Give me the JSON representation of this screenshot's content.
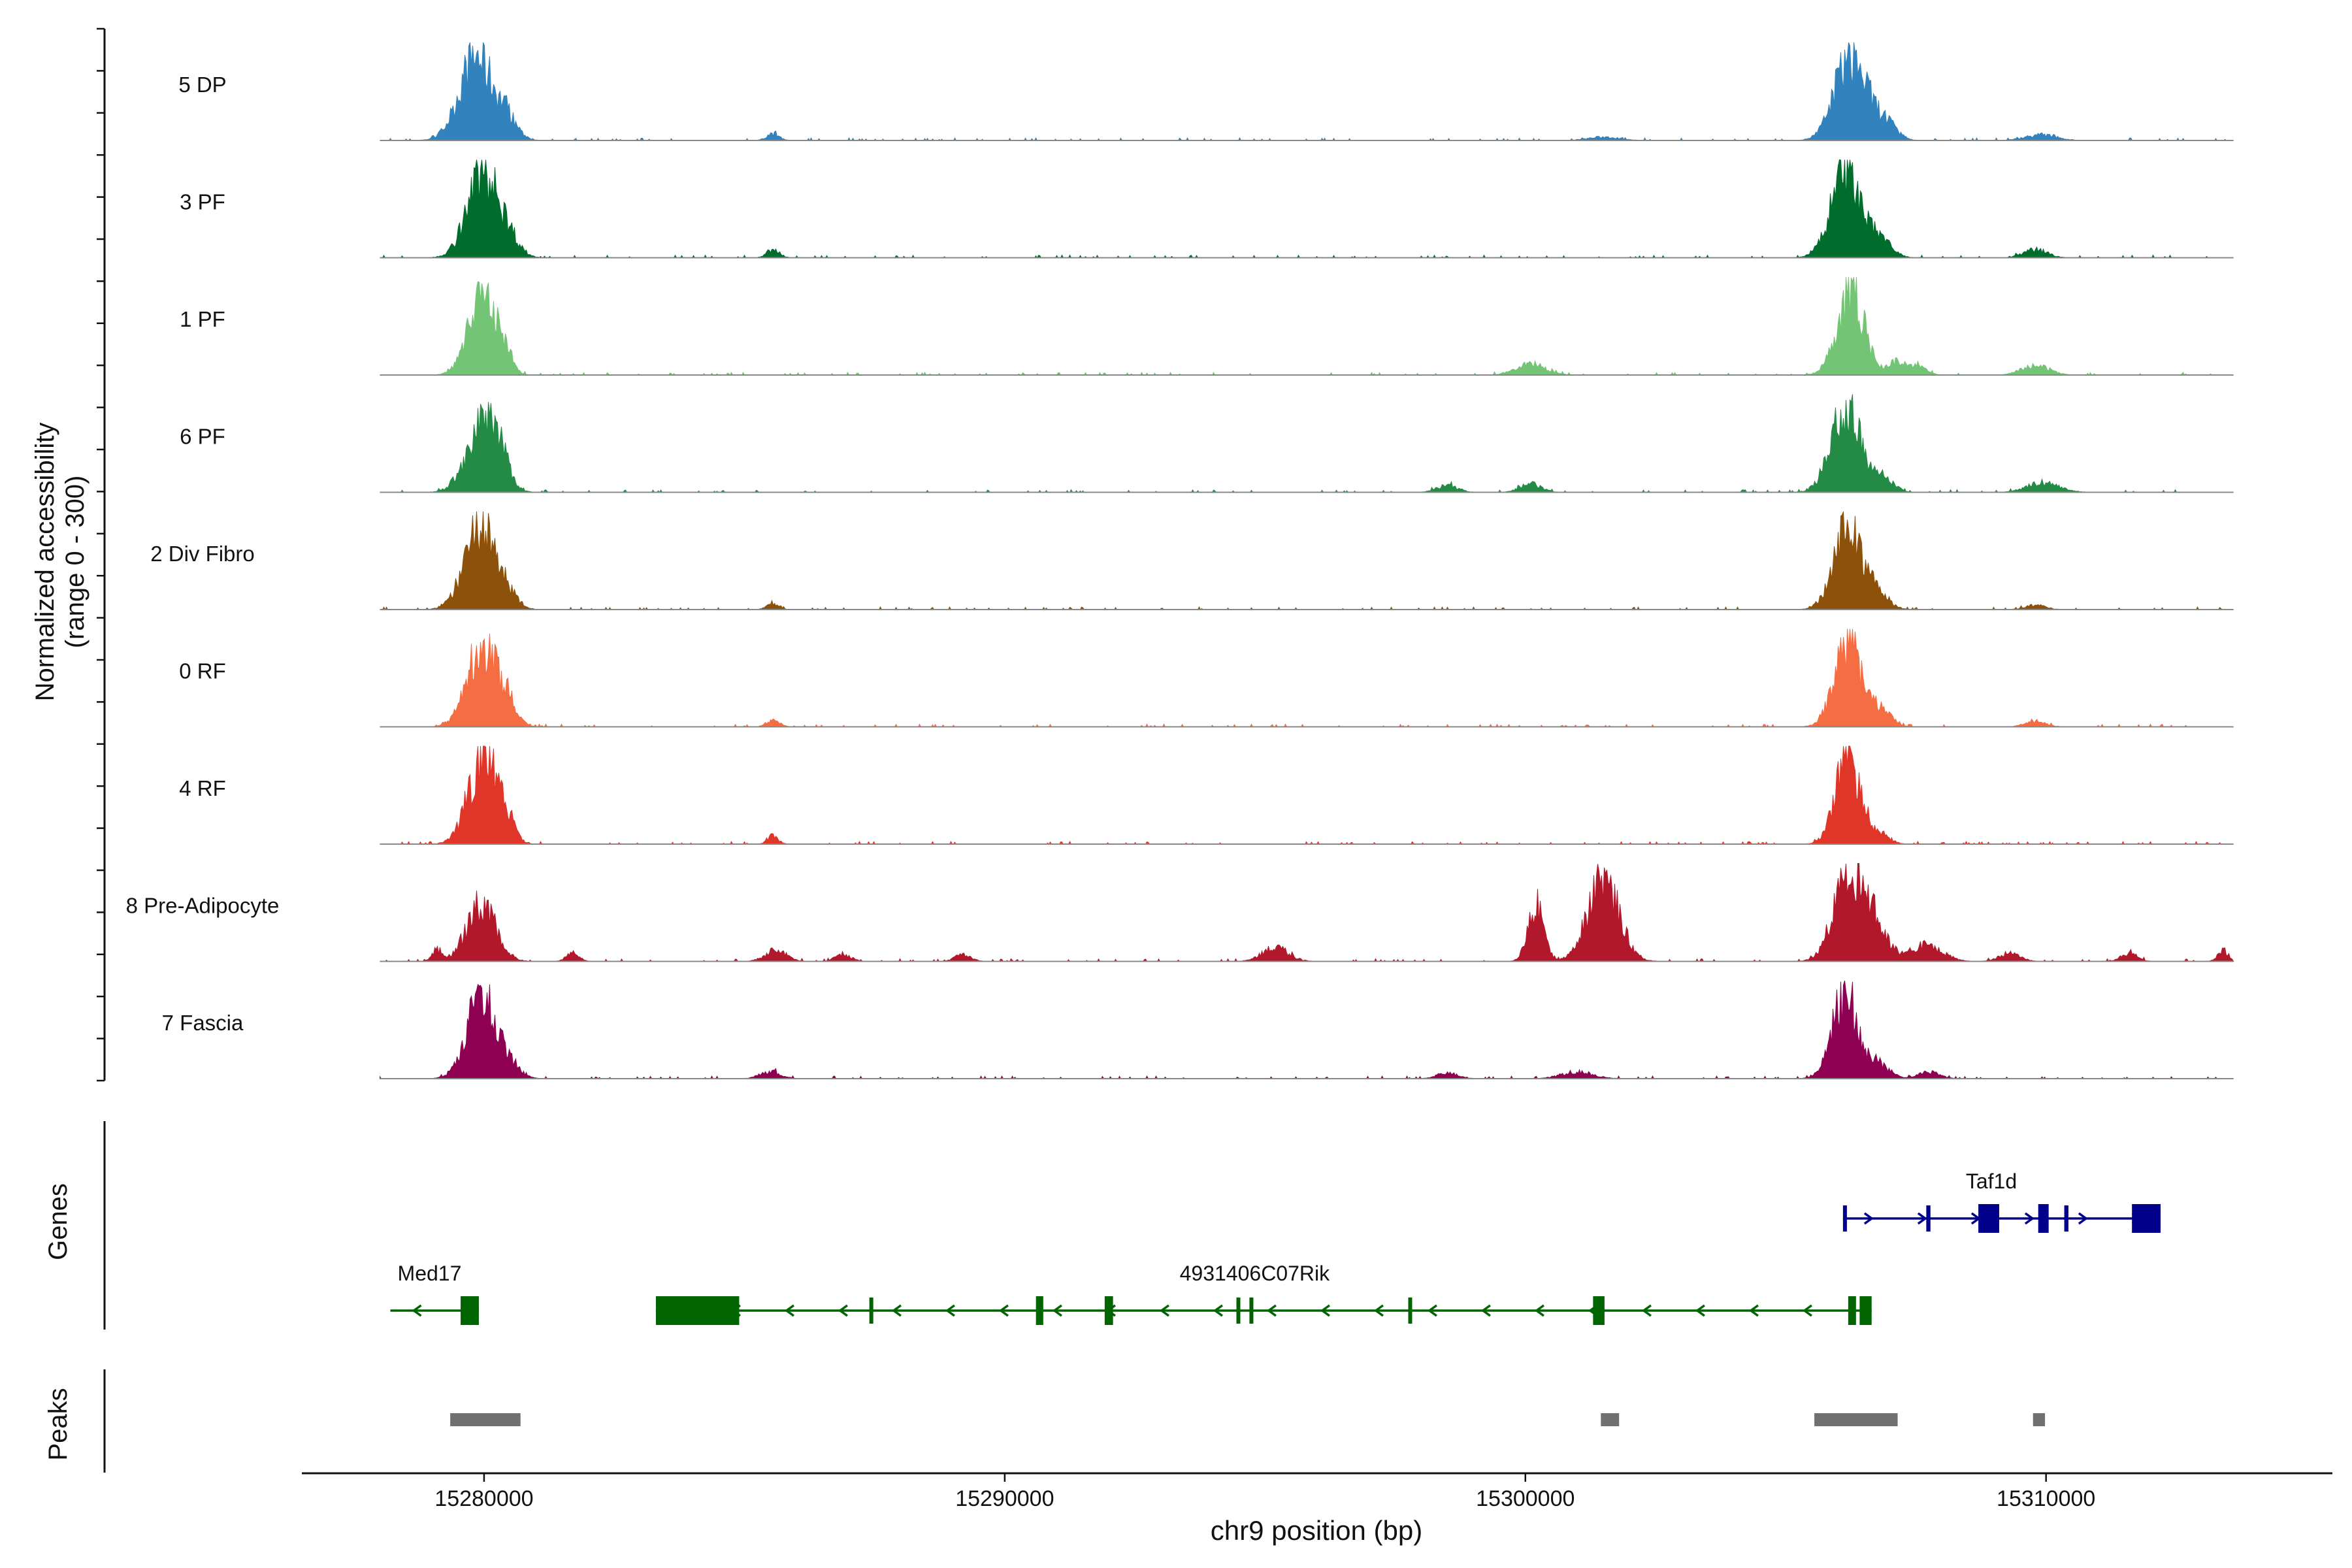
{
  "chart_data": {
    "type": "area",
    "title": "",
    "ylabel_line1": "Normalized accessibility",
    "ylabel_line2": "(range 0 - 300)",
    "xlabel": "chr9 position (bp)",
    "xlim": [
      15276500,
      15315500
    ],
    "ylim": [
      0,
      300
    ],
    "xticks": [
      15280000,
      15290000,
      15300000,
      15310000
    ],
    "xtick_labels": [
      "15280000",
      "15290000",
      "15300000",
      "15310000"
    ],
    "track_range": [
      15278000,
      15313600
    ],
    "series": [
      {
        "name": "5 DP",
        "color": "#3182BD",
        "peaks": [
          [
            15279850,
            300,
            320
          ],
          [
            15280450,
            60,
            200
          ],
          [
            15285550,
            25,
            120
          ],
          [
            15306250,
            300,
            300
          ],
          [
            15306900,
            60,
            220
          ],
          [
            15309900,
            20,
            300
          ],
          [
            15301500,
            12,
            300
          ]
        ]
      },
      {
        "name": "3 PF",
        "color": "#006D2C",
        "peaks": [
          [
            15279980,
            300,
            300
          ],
          [
            15280500,
            50,
            200
          ],
          [
            15285550,
            30,
            120
          ],
          [
            15306150,
            300,
            280
          ],
          [
            15306800,
            70,
            220
          ],
          [
            15309800,
            30,
            220
          ]
        ]
      },
      {
        "name": "1 PF",
        "color": "#74C476",
        "peaks": [
          [
            15279950,
            300,
            260
          ],
          [
            15280380,
            70,
            150
          ],
          [
            15300100,
            40,
            280
          ],
          [
            15306250,
            300,
            260
          ],
          [
            15307150,
            50,
            160
          ],
          [
            15307550,
            35,
            160
          ],
          [
            15309800,
            35,
            260
          ]
        ]
      },
      {
        "name": "6 PF",
        "color": "#238B45",
        "peaks": [
          [
            15279950,
            230,
            300
          ],
          [
            15280300,
            80,
            180
          ],
          [
            15298500,
            25,
            200
          ],
          [
            15300100,
            30,
            200
          ],
          [
            15306150,
            300,
            280
          ],
          [
            15306850,
            60,
            200
          ],
          [
            15309950,
            35,
            300
          ]
        ]
      },
      {
        "name": "2 Div Fibro",
        "color": "#8C510A",
        "peaks": [
          [
            15279920,
            290,
            300
          ],
          [
            15280450,
            40,
            200
          ],
          [
            15285550,
            20,
            120
          ],
          [
            15306200,
            300,
            270
          ],
          [
            15306800,
            50,
            200
          ],
          [
            15309800,
            15,
            200
          ]
        ]
      },
      {
        "name": "0 RF",
        "color": "#F46D43",
        "peaks": [
          [
            15279950,
            300,
            280
          ],
          [
            15280450,
            70,
            180
          ],
          [
            15285550,
            25,
            120
          ],
          [
            15306200,
            300,
            260
          ],
          [
            15306850,
            60,
            180
          ],
          [
            15309800,
            20,
            200
          ]
        ]
      },
      {
        "name": "4 RF",
        "color": "#E03529",
        "peaks": [
          [
            15279980,
            300,
            280
          ],
          [
            15280400,
            70,
            160
          ],
          [
            15285550,
            30,
            100
          ],
          [
            15306200,
            300,
            240
          ],
          [
            15306800,
            40,
            180
          ]
        ]
      },
      {
        "name": "8 Pre-Adipocyte",
        "color": "#B2182B",
        "peaks": [
          [
            15279950,
            200,
            280
          ],
          [
            15279100,
            40,
            100
          ],
          [
            15281700,
            30,
            120
          ],
          [
            15285600,
            40,
            200
          ],
          [
            15286900,
            25,
            150
          ],
          [
            15289200,
            25,
            150
          ],
          [
            15295200,
            50,
            250
          ],
          [
            15300200,
            200,
            150
          ],
          [
            15301500,
            300,
            300
          ],
          [
            15306200,
            300,
            280
          ],
          [
            15306700,
            120,
            250
          ],
          [
            15307700,
            60,
            300
          ],
          [
            15309300,
            30,
            200
          ],
          [
            15311600,
            30,
            150
          ],
          [
            15313400,
            40,
            100
          ]
        ]
      },
      {
        "name": "7 Fascia",
        "color": "#8E0152",
        "peaks": [
          [
            15279950,
            300,
            280
          ],
          [
            15280500,
            40,
            200
          ],
          [
            15285500,
            25,
            200
          ],
          [
            15298500,
            20,
            200
          ],
          [
            15301000,
            25,
            300
          ],
          [
            15306150,
            300,
            250
          ],
          [
            15306800,
            50,
            200
          ],
          [
            15307750,
            25,
            200
          ]
        ]
      }
    ],
    "genes": [
      {
        "name": "Taf1d",
        "strand": "+",
        "color": "#00008B",
        "row": 1,
        "start": 15306100,
        "end": 15312200,
        "exons": [
          [
            15306100,
            15306170,
            "line"
          ],
          [
            15307700,
            15307780,
            "line"
          ],
          [
            15308700,
            15309100,
            "box"
          ],
          [
            15309850,
            15310050,
            "box"
          ],
          [
            15310350,
            15310430,
            "line"
          ],
          [
            15311650,
            15312200,
            "box"
          ]
        ]
      },
      {
        "name": "Med17",
        "strand": "-",
        "color": "#006400",
        "row": 2,
        "start": 15278200,
        "end": 15279900,
        "exons": [
          [
            15279550,
            15279900,
            "box"
          ]
        ]
      },
      {
        "name": "4931406C07Rik",
        "strand": "-",
        "color": "#006400",
        "row": 2,
        "start": 15283300,
        "end": 15306650,
        "exons": [
          [
            15283300,
            15284900,
            "box"
          ],
          [
            15287400,
            15287470,
            "line"
          ],
          [
            15290600,
            15290740,
            "box"
          ],
          [
            15291920,
            15292080,
            "box"
          ],
          [
            15294450,
            15294520,
            "line"
          ],
          [
            15294700,
            15294770,
            "line"
          ],
          [
            15297750,
            15297820,
            "line"
          ],
          [
            15301300,
            15301520,
            "box"
          ],
          [
            15306200,
            15306350,
            "box"
          ],
          [
            15306420,
            15306650,
            "box"
          ]
        ]
      }
    ],
    "peak_regions": [
      [
        15279350,
        15280700
      ],
      [
        15301450,
        15301800
      ],
      [
        15305550,
        15307150
      ],
      [
        15309750,
        15309980
      ]
    ]
  }
}
